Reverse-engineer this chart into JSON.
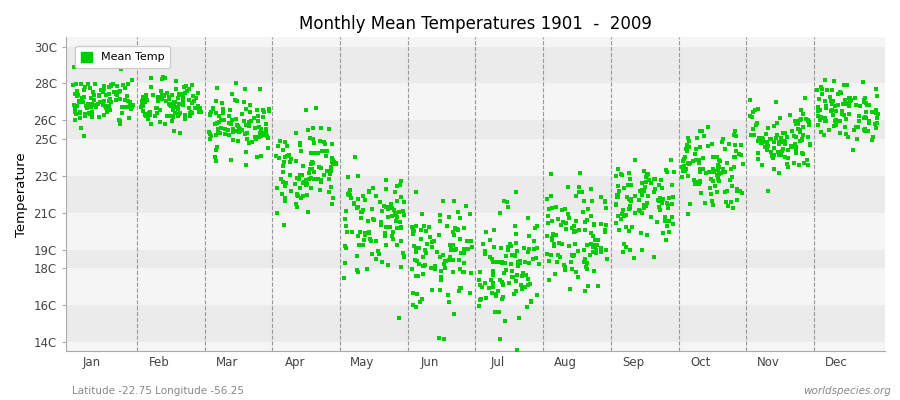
{
  "title": "Monthly Mean Temperatures 1901  -  2009",
  "ylabel": "Temperature",
  "xlabel_months": [
    "Jan",
    "Feb",
    "Mar",
    "Apr",
    "May",
    "Jun",
    "Jul",
    "Aug",
    "Sep",
    "Oct",
    "Nov",
    "Dec"
  ],
  "ytick_labels": [
    "14C",
    "16C",
    "18C",
    "19C",
    "21C",
    "23C",
    "25C",
    "26C",
    "28C",
    "30C"
  ],
  "ytick_values": [
    14,
    16,
    18,
    19,
    21,
    23,
    25,
    26,
    28,
    30
  ],
  "ylim": [
    13.5,
    30.5
  ],
  "dot_color": "#00CC00",
  "background_color": "#ffffff",
  "band_light": "#f5f5f5",
  "band_dark": "#ebebeb",
  "footer_left": "Latitude -22.75 Longitude -56.25",
  "footer_right": "worldspecies.org",
  "legend_label": "Mean Temp",
  "monthly_means": [
    27.0,
    26.8,
    25.8,
    23.5,
    20.5,
    18.5,
    18.2,
    19.5,
    21.5,
    23.5,
    25.0,
    26.5
  ],
  "monthly_stds": [
    0.7,
    0.7,
    0.8,
    1.2,
    1.5,
    1.5,
    1.6,
    1.4,
    1.3,
    1.2,
    1.0,
    0.8
  ],
  "n_years": 109,
  "seed": 42
}
